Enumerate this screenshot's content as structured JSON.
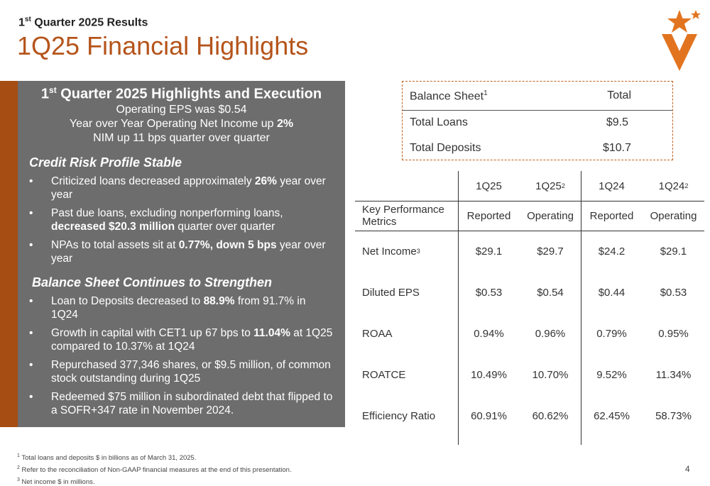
{
  "header": {
    "kicker_main": "1",
    "kicker_sup": "st",
    "kicker_rest": " Quarter 2025 Results",
    "title": "1Q25 Financial Highlights"
  },
  "brand": {
    "accent": "#b5541b",
    "accent_dark": "#a64d14",
    "panel_gray": "#6d6d6d",
    "logo_icon": "star-v-logo-icon"
  },
  "panel": {
    "heading_main": "1",
    "heading_sup": "st",
    "heading_rest": " Quarter 2025 Highlights and Execution",
    "intro": [
      {
        "pre": "Operating EPS was $0.54",
        "bold": "",
        "post": ""
      },
      {
        "pre": "Year over Year Operating Net Income up ",
        "bold": "2%",
        "post": ""
      },
      {
        "pre": "NIM up 11 bps quarter over quarter",
        "bold": "",
        "post": ""
      }
    ],
    "section1": "Credit Risk Profile Stable",
    "bullets1": [
      {
        "pre": "Criticized loans decreased approximately ",
        "bold": "26%",
        "post": " year over year"
      },
      {
        "pre": "Past due loans, excluding nonperforming loans, ",
        "bold": "decreased $20.3 million",
        "post": " quarter over quarter"
      },
      {
        "pre": "NPAs to total assets sit at ",
        "bold": "0.77%, down 5 bps",
        "post": " year over year"
      }
    ],
    "section2": "Balance Sheet Continues to Strengthen",
    "bullets2": [
      {
        "pre": "Loan to Deposits decreased to ",
        "bold": "88.9%",
        "post": " from 91.7% in 1Q24"
      },
      {
        "pre": "Growth in capital with CET1 up 67 bps to ",
        "bold": "11.04%",
        "post": " at 1Q25 compared to 10.37% at 1Q24"
      },
      {
        "pre": "Repurchased 377,346 shares, or $9.5 million, of common stock outstanding during 1Q25",
        "bold": "",
        "post": ""
      },
      {
        "pre": "Redeemed $75 million in subordinated debt that flipped to a SOFR+347 rate in November 2024.",
        "bold": "",
        "post": ""
      }
    ]
  },
  "balance_sheet": {
    "header_label": "Balance Sheet",
    "header_sup": "1",
    "header_value": "Total",
    "rows": [
      {
        "label": "Total Loans",
        "value": "$9.5"
      },
      {
        "label": "Total Deposits",
        "value": "$10.7"
      }
    ]
  },
  "kpi": {
    "columns": [
      {
        "period": "1Q25",
        "sup": "",
        "basis": "Reported"
      },
      {
        "period": "1Q25",
        "sup": "2",
        "basis": "Operating"
      },
      {
        "period": "1Q24",
        "sup": "",
        "basis": "Reported"
      },
      {
        "period": "1Q24",
        "sup": "2",
        "basis": "Operating"
      }
    ],
    "row_header": "Key Performance Metrics",
    "rows": [
      {
        "label": "Net Income",
        "sup": "3",
        "values": [
          "$29.1",
          "$29.7",
          "$24.2",
          "$29.1"
        ]
      },
      {
        "label": "Diluted EPS",
        "sup": "",
        "values": [
          "$0.53",
          "$0.54",
          "$0.44",
          "$0.53"
        ]
      },
      {
        "label": "ROAA",
        "sup": "",
        "values": [
          "0.94%",
          "0.96%",
          "0.79%",
          "0.95%"
        ]
      },
      {
        "label": "ROATCE",
        "sup": "",
        "values": [
          "10.49%",
          "10.70%",
          "9.52%",
          "11.34%"
        ]
      },
      {
        "label": "Efficiency Ratio",
        "sup": "",
        "values": [
          "60.91%",
          "60.62%",
          "62.45%",
          "58.73%"
        ]
      }
    ]
  },
  "footnotes": [
    {
      "sup": "1",
      "text": " Total loans and deposits $ in billions as of March 31, 2025."
    },
    {
      "sup": "2",
      "text": " Refer to the reconciliation of Non-GAAP financial measures at the end of this presentation."
    },
    {
      "sup": "3",
      "text": " Net income $ in millions."
    }
  ],
  "page_number": "4"
}
